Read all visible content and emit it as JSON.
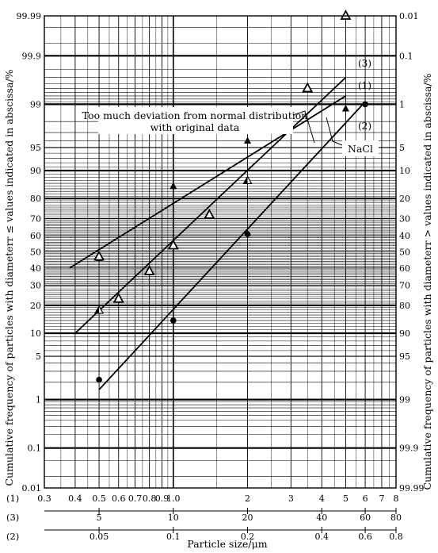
{
  "chart_data": {
    "type": "scatter",
    "x_scale": "log",
    "y_scale": "probability",
    "grid": true,
    "left_ticks": [
      "99.99",
      "99.9",
      "99",
      "95",
      "90",
      "80",
      "70",
      "60",
      "50",
      "40",
      "30",
      "20",
      "10",
      "5",
      "1",
      "0.1",
      "0.01"
    ],
    "right_ticks": [
      "0.01",
      "0.1",
      "1",
      "5",
      "10",
      "20",
      "30",
      "40",
      "50",
      "60",
      "70",
      "80",
      "90",
      "95",
      "99",
      "99.9",
      "99.99"
    ],
    "ylabel_left": "Cumulative frequency of particles with diameterr ≤ values indicated in abscissa/%",
    "ylabel_right": "Cumulative frequency of particles with diameterr > values indicated in abscissa/%",
    "xlabel": "Particle size/μm",
    "x_axes": [
      {
        "label": "(1)",
        "ticks": [
          {
            "v": 0.3,
            "t": "0.3"
          },
          {
            "v": 0.4,
            "t": "0.4"
          },
          {
            "v": 0.5,
            "t": "0.5"
          },
          {
            "v": 0.6,
            "t": "0.6"
          },
          {
            "v": 0.7,
            "t": "0.7"
          },
          {
            "v": 0.8,
            "t": "0.8"
          },
          {
            "v": 0.9,
            "t": "0.9"
          },
          {
            "v": 1.0,
            "t": "1.0"
          },
          {
            "v": 2,
            "t": "2"
          },
          {
            "v": 3,
            "t": "3"
          },
          {
            "v": 4,
            "t": "4"
          },
          {
            "v": 5,
            "t": "5"
          },
          {
            "v": 6,
            "t": "6"
          },
          {
            "v": 7,
            "t": "7"
          },
          {
            "v": 8,
            "t": "8"
          }
        ]
      },
      {
        "label": "(3)",
        "ticks": [
          {
            "v": 0.5,
            "t": "5"
          },
          {
            "v": 1.0,
            "t": "10"
          },
          {
            "v": 2,
            "t": "20"
          },
          {
            "v": 4,
            "t": "40"
          },
          {
            "v": 6,
            "t": "60"
          },
          {
            "v": 8,
            "t": "80"
          }
        ]
      },
      {
        "label": "(2)",
        "ticks": [
          {
            "v": 0.5,
            "t": "0.05"
          },
          {
            "v": 1.0,
            "t": "0.1"
          },
          {
            "v": 2,
            "t": "0.2"
          },
          {
            "v": 4,
            "t": "0.4"
          },
          {
            "v": 6,
            "t": "0.6"
          },
          {
            "v": 8,
            "t": "0.8"
          }
        ]
      }
    ],
    "series": [
      {
        "name": "(1)",
        "marker": "triangle-up",
        "points": [
          [
            0.5,
            46
          ],
          [
            1.0,
            85
          ],
          [
            2.0,
            96
          ],
          [
            5.0,
            98.8
          ]
        ],
        "line": [
          [
            0.38,
            40
          ],
          [
            5.0,
            99.3
          ]
        ]
      },
      {
        "name": "(2)",
        "marker": "circle",
        "points": [
          [
            0.5,
            2.2
          ],
          [
            1.0,
            14
          ],
          [
            2.0,
            61
          ],
          [
            6.0,
            99
          ]
        ],
        "line": [
          [
            0.5,
            1.5
          ],
          [
            6.0,
            99.1
          ]
        ]
      },
      {
        "name": "(3)",
        "marker": "triangle-open",
        "points": [
          [
            0.5,
            47
          ],
          [
            0.6,
            23
          ],
          [
            0.8,
            38
          ],
          [
            1.0,
            54
          ],
          [
            1.4,
            72
          ],
          [
            3.5,
            99.5
          ],
          [
            5.0,
            99.99
          ]
        ],
        "line": [
          [
            0.4,
            10
          ],
          [
            5.0,
            99.7
          ]
        ]
      }
    ],
    "extra_markers": [
      {
        "marker": "triangle-half",
        "points": [
          [
            0.5,
            18
          ],
          [
            2.0,
            87
          ]
        ]
      }
    ],
    "annotations": {
      "deviation_line1": "Too much deviation from normal distribution",
      "deviation_line2": "with original data",
      "nacl": "NaCl"
    },
    "colors": {
      "ink": "#000000",
      "paper": "#ffffff"
    }
  }
}
